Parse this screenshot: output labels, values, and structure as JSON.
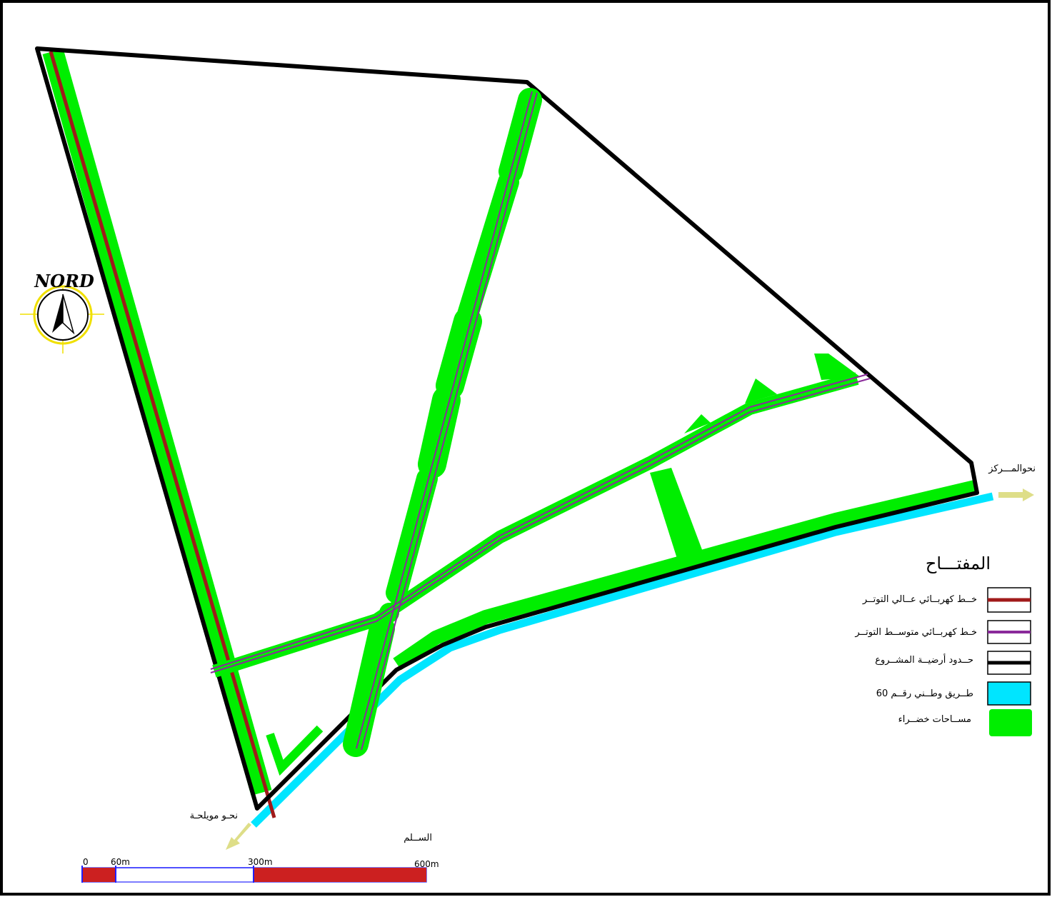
{
  "map": {
    "north_label": "NORD",
    "directions": {
      "east": "نحوالمـــركز",
      "southwest": "نحـو مويلحـة"
    },
    "legend": {
      "title": "المفتـــاح",
      "items": [
        "خــط كهربــائي عــالي التوتــر",
        "خـط كهربــائي متوســط التوتــر",
        "حــدود أرضيــة المشــروع",
        "طــريق وطــني رقــم 60",
        "مســاحات خضــراء"
      ]
    },
    "scale": {
      "title": "الســلم",
      "labels": [
        "0",
        "60m",
        "300m",
        "600m"
      ]
    }
  }
}
